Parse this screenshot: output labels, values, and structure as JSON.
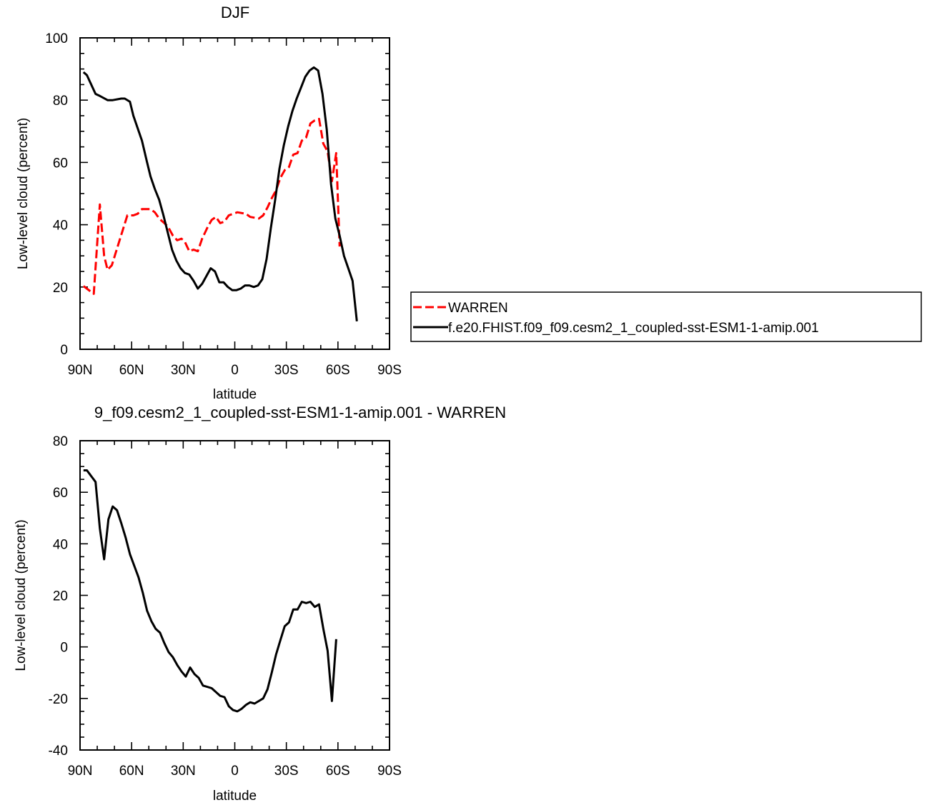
{
  "chart_data": [
    {
      "type": "line",
      "title": "DJF",
      "xlabel": "latitude",
      "ylabel": "Low-level cloud (percent)",
      "xlim": [
        90,
        -90
      ],
      "ylim": [
        0,
        100
      ],
      "x_ticks": [
        {
          "value": 90,
          "label": "90N"
        },
        {
          "value": 60,
          "label": "60N"
        },
        {
          "value": 30,
          "label": "30N"
        },
        {
          "value": 0,
          "label": "0"
        },
        {
          "value": -30,
          "label": "30S"
        },
        {
          "value": -60,
          "label": "60S"
        },
        {
          "value": -90,
          "label": "90S"
        }
      ],
      "y_ticks": [
        0,
        20,
        40,
        60,
        80,
        100
      ],
      "legend": {
        "placement": "right",
        "entries": [
          {
            "label": "WARREN",
            "color": "#ff0000",
            "style": "dashed"
          },
          {
            "label": "f.e20.FHIST.f09_f09.cesm2_1_coupled-sst-ESM1-1-amip.001",
            "color": "#000000",
            "style": "solid"
          }
        ]
      },
      "series": [
        {
          "name": "WARREN",
          "color": "#ff0000",
          "dash": true,
          "points": [
            [
              88,
              20.3
            ],
            [
              82,
              17.8
            ],
            [
              78.5,
              46.5
            ],
            [
              76,
              30
            ],
            [
              74,
              25.5
            ],
            [
              71.5,
              27
            ],
            [
              67,
              35
            ],
            [
              62.5,
              43
            ],
            [
              59,
              43
            ],
            [
              56.5,
              43.5
            ],
            [
              54,
              45
            ],
            [
              49,
              45
            ],
            [
              46.5,
              44
            ],
            [
              44,
              42
            ],
            [
              39,
              39.5
            ],
            [
              36,
              36.5
            ],
            [
              33.5,
              35
            ],
            [
              31,
              35.5
            ],
            [
              29,
              34.5
            ],
            [
              26.5,
              31.5
            ],
            [
              24,
              32
            ],
            [
              21.5,
              31.5
            ],
            [
              19,
              35.5
            ],
            [
              16,
              39
            ],
            [
              13.5,
              41.5
            ],
            [
              11,
              42.5
            ],
            [
              8.5,
              40.5
            ],
            [
              6,
              41
            ],
            [
              3.5,
              43
            ],
            [
              -1.5,
              44
            ],
            [
              -6.5,
              43.5
            ],
            [
              -9,
              42.5
            ],
            [
              -14,
              42
            ],
            [
              -16.5,
              43
            ],
            [
              -19,
              45.5
            ],
            [
              -21.5,
              48.5
            ],
            [
              -24,
              51
            ],
            [
              -26.5,
              55
            ],
            [
              -29,
              57.5
            ],
            [
              -31.5,
              58.5
            ],
            [
              -34,
              62.5
            ],
            [
              -36.5,
              63
            ],
            [
              -39,
              67
            ],
            [
              -41.5,
              68
            ],
            [
              -44,
              72.5
            ],
            [
              -46.5,
              73.5
            ],
            [
              -49,
              74
            ],
            [
              -51.5,
              66
            ],
            [
              -54,
              63.5
            ],
            [
              -56.5,
              54
            ],
            [
              -59,
              63
            ],
            [
              -61,
              33
            ]
          ]
        },
        {
          "name": "f.e20.FHIST.f09_f09.cesm2_1_coupled-sst-ESM1-1-amip.001",
          "color": "#000000",
          "dash": false,
          "points": [
            [
              88,
              89
            ],
            [
              86,
              88
            ],
            [
              81,
              82
            ],
            [
              79,
              81.5
            ],
            [
              74,
              80
            ],
            [
              71,
              80
            ],
            [
              66,
              80.5
            ],
            [
              64,
              80.5
            ],
            [
              61,
              79.5
            ],
            [
              59,
              75
            ],
            [
              54,
              67
            ],
            [
              51,
              60
            ],
            [
              49,
              55.5
            ],
            [
              46.5,
              51.5
            ],
            [
              44,
              48
            ],
            [
              41.5,
              43
            ],
            [
              39,
              37.5
            ],
            [
              36.5,
              32
            ],
            [
              34,
              28.5
            ],
            [
              31.5,
              26
            ],
            [
              29,
              24.5
            ],
            [
              26.5,
              24
            ],
            [
              24,
              22
            ],
            [
              21.5,
              19.5
            ],
            [
              19,
              21
            ],
            [
              16.5,
              23.5
            ],
            [
              14,
              26
            ],
            [
              11.5,
              25
            ],
            [
              9,
              21.5
            ],
            [
              6.5,
              21.5
            ],
            [
              4,
              20
            ],
            [
              1.5,
              19
            ],
            [
              -1,
              19
            ],
            [
              -3.5,
              19.5
            ],
            [
              -6,
              20.5
            ],
            [
              -8.5,
              20.5
            ],
            [
              -11,
              20
            ],
            [
              -13.5,
              20.5
            ],
            [
              -16,
              22.5
            ],
            [
              -18.5,
              29
            ],
            [
              -21,
              39
            ],
            [
              -23.5,
              48
            ],
            [
              -26,
              58
            ],
            [
              -28.5,
              65.5
            ],
            [
              -31,
              71.5
            ],
            [
              -33.5,
              76.5
            ],
            [
              -36,
              80.5
            ],
            [
              -38.5,
              84
            ],
            [
              -41,
              87.5
            ],
            [
              -43.5,
              89.5
            ],
            [
              -46,
              90.5
            ],
            [
              -48.5,
              89.5
            ],
            [
              -51,
              82
            ],
            [
              -53.5,
              70.5
            ],
            [
              -56,
              53
            ],
            [
              -58.5,
              42
            ],
            [
              -61,
              36.5
            ],
            [
              -63.5,
              30
            ],
            [
              -66,
              26
            ],
            [
              -68.5,
              22
            ],
            [
              -71,
              9
            ]
          ]
        }
      ]
    },
    {
      "type": "line",
      "title": "9_f09.cesm2_1_coupled-sst-ESM1-1-amip.001 - WARREN",
      "xlabel": "latitude",
      "ylabel": "Low-level cloud (percent)",
      "xlim": [
        90,
        -90
      ],
      "ylim": [
        -40,
        80
      ],
      "x_ticks": [
        {
          "value": 90,
          "label": "90N"
        },
        {
          "value": 60,
          "label": "60N"
        },
        {
          "value": 30,
          "label": "30N"
        },
        {
          "value": 0,
          "label": "0"
        },
        {
          "value": -30,
          "label": "30S"
        },
        {
          "value": -60,
          "label": "60S"
        },
        {
          "value": -90,
          "label": "90S"
        }
      ],
      "y_ticks": [
        -40,
        -20,
        0,
        20,
        40,
        60,
        80
      ],
      "series": [
        {
          "color": "#000000",
          "dash": false,
          "points": [
            [
              88,
              68.5
            ],
            [
              86,
              68.5
            ],
            [
              81,
              64
            ],
            [
              78.5,
              46
            ],
            [
              76,
              34
            ],
            [
              73.5,
              49.5
            ],
            [
              71,
              54.5
            ],
            [
              68.5,
              53
            ],
            [
              66,
              48
            ],
            [
              63.5,
              42.5
            ],
            [
              61,
              36
            ],
            [
              58.5,
              31.5
            ],
            [
              56,
              27
            ],
            [
              53.5,
              21
            ],
            [
              51,
              14
            ],
            [
              48.5,
              10
            ],
            [
              46,
              7
            ],
            [
              43.5,
              5.5
            ],
            [
              41,
              1.5
            ],
            [
              38.5,
              -2
            ],
            [
              36,
              -4
            ],
            [
              33.5,
              -7
            ],
            [
              31,
              -9.5
            ],
            [
              28.5,
              -11.5
            ],
            [
              26,
              -8
            ],
            [
              23.5,
              -10.5
            ],
            [
              21,
              -12
            ],
            [
              18.5,
              -15
            ],
            [
              16,
              -15.5
            ],
            [
              13.5,
              -16
            ],
            [
              11,
              -17.5
            ],
            [
              8.5,
              -19
            ],
            [
              6,
              -19.5
            ],
            [
              3.5,
              -23
            ],
            [
              1,
              -24.5
            ],
            [
              -1.5,
              -25
            ],
            [
              -4,
              -24
            ],
            [
              -6.5,
              -22.5
            ],
            [
              -9,
              -21.5
            ],
            [
              -11.5,
              -22
            ],
            [
              -14,
              -21
            ],
            [
              -16.5,
              -20
            ],
            [
              -19,
              -16.5
            ],
            [
              -21.5,
              -10
            ],
            [
              -24,
              -3
            ],
            [
              -26.5,
              2.5
            ],
            [
              -29,
              8
            ],
            [
              -31.5,
              9.5
            ],
            [
              -34,
              14.5
            ],
            [
              -36.5,
              14.5
            ],
            [
              -39,
              17.5
            ],
            [
              -41.5,
              17
            ],
            [
              -44,
              17.5
            ],
            [
              -46.5,
              15.5
            ],
            [
              -49,
              16.5
            ],
            [
              -51.5,
              7
            ],
            [
              -54,
              -1.5
            ],
            [
              -56.5,
              -21
            ],
            [
              -59,
              3
            ]
          ]
        }
      ]
    }
  ]
}
